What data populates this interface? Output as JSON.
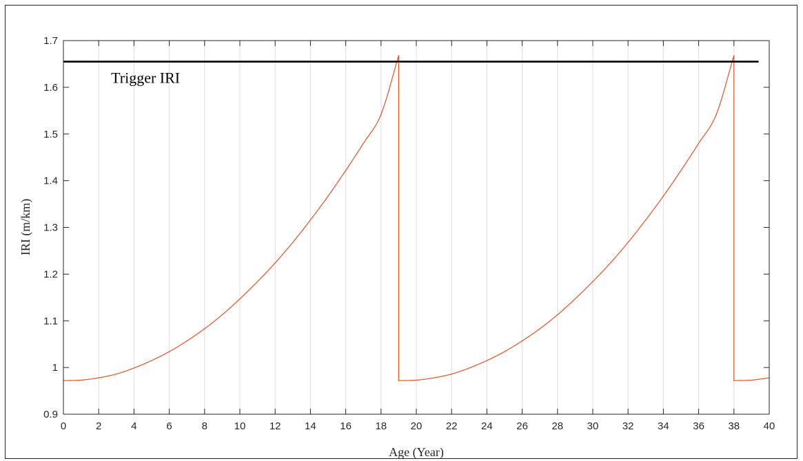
{
  "chart_data": {
    "type": "line",
    "xlabel": "Age (Year)",
    "ylabel": "IRI (m/km)",
    "xlim": [
      0,
      40
    ],
    "ylim": [
      0.9,
      1.7
    ],
    "x_ticks": [
      0,
      2,
      4,
      6,
      8,
      10,
      12,
      14,
      16,
      18,
      20,
      22,
      24,
      26,
      28,
      30,
      32,
      34,
      36,
      38,
      40
    ],
    "y_ticks": [
      0.9,
      1,
      1.1,
      1.2,
      1.3,
      1.4,
      1.5,
      1.6,
      1.7
    ],
    "y_tick_labels": [
      "0.9",
      "1",
      "1.1",
      "1.2",
      "1.3",
      "1.4",
      "1.5",
      "1.6",
      "1.7"
    ],
    "grid": "vertical",
    "series": [
      {
        "color": "#d9532b",
        "x": [
          0,
          1,
          2,
          3,
          4,
          5,
          6,
          7,
          8,
          9,
          10,
          11,
          12,
          13,
          14,
          15,
          16,
          17,
          18,
          19,
          19,
          20,
          21,
          22,
          23,
          24,
          25,
          26,
          27,
          28,
          29,
          30,
          31,
          32,
          33,
          34,
          35,
          36,
          37,
          38,
          38,
          39,
          40
        ],
        "y": [
          0.972,
          0.973,
          0.978,
          0.986,
          0.999,
          1.015,
          1.034,
          1.057,
          1.083,
          1.113,
          1.147,
          1.184,
          1.224,
          1.268,
          1.316,
          1.367,
          1.422,
          1.48,
          1.542,
          1.668,
          0.972,
          0.973,
          0.978,
          0.986,
          0.999,
          1.015,
          1.034,
          1.057,
          1.083,
          1.113,
          1.147,
          1.184,
          1.224,
          1.268,
          1.316,
          1.367,
          1.422,
          1.48,
          1.542,
          1.668,
          0.972,
          0.973,
          0.978
        ]
      }
    ],
    "threshold": {
      "value": 1.655,
      "x_range": [
        0,
        39.4
      ],
      "color": "#000000"
    },
    "annotations": [
      {
        "text": "Trigger IRI",
        "x": 2.7,
        "y": 1.62
      }
    ]
  }
}
